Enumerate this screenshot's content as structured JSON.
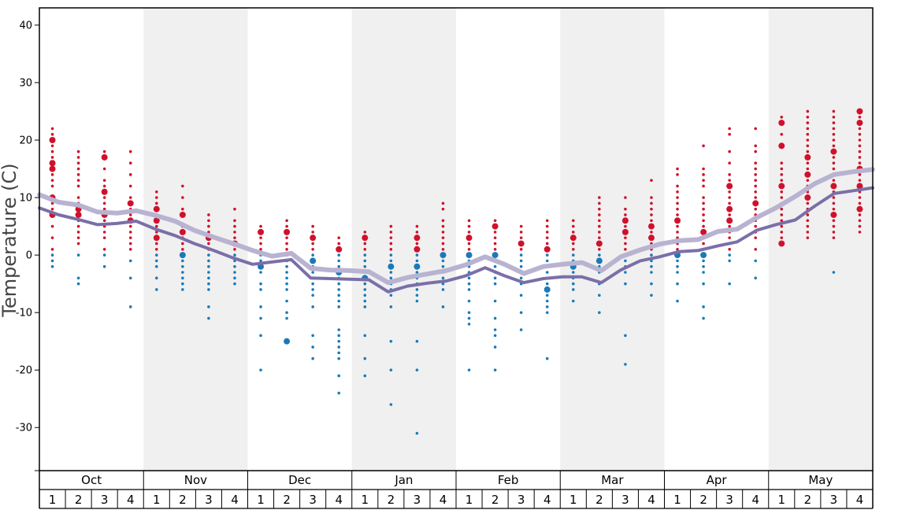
{
  "chart_data": {
    "type": "scatter",
    "ylabel": "Temperature (C)",
    "ylim": [
      -37.5,
      43
    ],
    "yticks": [
      40,
      30,
      20,
      10,
      0,
      -10,
      -20,
      -30
    ],
    "months": [
      "Oct",
      "Nov",
      "Dec",
      "Jan",
      "Feb",
      "Mar",
      "Apr",
      "May"
    ],
    "weeks": [
      "1",
      "2",
      "3",
      "4"
    ],
    "shaded_months": [
      "Nov",
      "Jan",
      "Mar",
      "May"
    ],
    "colors": {
      "warm_dots": "#d0112b",
      "cold_dots": "#1a7ab8",
      "shade": "#f0f0f0",
      "avg_high_line": "#b8b3d1",
      "avg_low_line": "#7b6fa8"
    },
    "lines": {
      "avg_high": [
        10.5,
        9.2,
        8.7,
        7.5,
        7.3,
        7.7,
        6.9,
        5.9,
        4.3,
        3.1,
        2.0,
        0.8,
        -0.2,
        0.3,
        -2.3,
        -2.6,
        -2.7,
        -2.9,
        -4.8,
        -3.9,
        -3.3,
        -2.7,
        -1.7,
        -0.3,
        -1.6,
        -3.2,
        -2.0,
        -1.6,
        -1.3,
        -2.7,
        -0.3,
        0.9,
        1.9,
        2.5,
        2.7,
        4.1,
        4.5,
        6.5,
        8.2,
        10.2,
        12.4,
        14.0,
        14.5,
        14.9
      ],
      "avg_low": [
        8.2,
        7.0,
        6.2,
        5.3,
        5.5,
        5.9,
        4.5,
        3.4,
        2.0,
        0.8,
        -0.5,
        -1.6,
        -1.2,
        -0.8,
        -4.0,
        -4.1,
        -4.2,
        -4.3,
        -6.4,
        -5.4,
        -4.9,
        -4.5,
        -3.6,
        -2.2,
        -3.6,
        -4.8,
        -4.1,
        -3.8,
        -3.8,
        -4.8,
        -2.6,
        -1.0,
        -0.3,
        0.6,
        0.8,
        1.6,
        2.3,
        4.3,
        5.3,
        6.1,
        8.5,
        10.7,
        11.2,
        11.7
      ]
    },
    "dots": [
      {
        "w": 0,
        "values": [
          22,
          21,
          20,
          19,
          18,
          17,
          16,
          15,
          14,
          13,
          12,
          10,
          9,
          8,
          7,
          5,
          3,
          1,
          0,
          -1,
          -2
        ],
        "big": [
          20,
          16,
          15,
          10,
          7
        ]
      },
      {
        "w": 1,
        "values": [
          18,
          17,
          16,
          15,
          14,
          13,
          12,
          10,
          9,
          8,
          7,
          6,
          5,
          4,
          3,
          2,
          0,
          -4,
          -5
        ],
        "big": [
          8,
          7
        ]
      },
      {
        "w": 2,
        "values": [
          18,
          17,
          15,
          13,
          12,
          11,
          10,
          9,
          8,
          7,
          6,
          5,
          4,
          3,
          1,
          0,
          -2
        ],
        "big": [
          17,
          11,
          7
        ]
      },
      {
        "w": 3,
        "values": [
          18,
          16,
          14,
          12,
          10,
          9,
          8,
          7,
          6,
          5,
          4,
          3,
          2,
          1,
          -1,
          -4,
          -9
        ],
        "big": [
          9,
          6
        ]
      },
      {
        "w": 4,
        "values": [
          11,
          10,
          9,
          8,
          7,
          6,
          5,
          4,
          3,
          2,
          1,
          0,
          -1,
          -2,
          -4,
          -6
        ],
        "big": [
          8,
          6,
          3
        ]
      },
      {
        "w": 5,
        "values": [
          12,
          10,
          8,
          7,
          5,
          4,
          3,
          2,
          1,
          0,
          -1,
          -2,
          -3,
          -4,
          -5,
          -6
        ],
        "big": [
          7,
          4,
          0
        ]
      },
      {
        "w": 6,
        "values": [
          7,
          6,
          5,
          4,
          3,
          2,
          1,
          0,
          -1,
          -2,
          -3,
          -4,
          -5,
          -6,
          -9,
          -11
        ],
        "big": [
          3
        ]
      },
      {
        "w": 7,
        "values": [
          8,
          6,
          5,
          4,
          3,
          2,
          1,
          0,
          -1,
          -2,
          -3,
          -4,
          -5
        ],
        "big": [
          2
        ]
      },
      {
        "w": 8,
        "values": [
          5,
          4,
          3,
          2,
          1,
          0,
          -1,
          -2,
          -3,
          -5,
          -6,
          -9,
          -11,
          -14,
          -20
        ],
        "big": [
          4,
          -2,
          -8
        ]
      },
      {
        "w": 9,
        "values": [
          6,
          5,
          4,
          3,
          2,
          1,
          0,
          -1,
          -2,
          -3,
          -4,
          -5,
          -6,
          -8,
          -10,
          -11,
          -15
        ],
        "big": [
          4,
          -15
        ]
      },
      {
        "w": 10,
        "values": [
          5,
          4,
          3,
          2,
          1,
          0,
          -1,
          -2,
          -3,
          -4,
          -5,
          -6,
          -7,
          -9,
          -14,
          -16,
          -18
        ],
        "big": [
          3,
          -1
        ]
      },
      {
        "w": 11,
        "values": [
          3,
          2,
          1,
          0,
          -1,
          -2,
          -3,
          -4,
          -5,
          -6,
          -7,
          -8,
          -9,
          -13,
          -14,
          -15,
          -16,
          -17,
          -18,
          -21,
          -24
        ],
        "big": [
          1,
          -3
        ]
      },
      {
        "w": 12,
        "values": [
          4,
          3,
          2,
          1,
          0,
          -1,
          -2,
          -3,
          -4,
          -5,
          -6,
          -7,
          -8,
          -9,
          -14,
          -18,
          -21
        ],
        "big": [
          3,
          -4
        ]
      },
      {
        "w": 13,
        "values": [
          5,
          4,
          3,
          2,
          1,
          0,
          -1,
          -2,
          -3,
          -4,
          -5,
          -6,
          -7,
          -9,
          -15,
          -20,
          -26
        ],
        "big": [
          -2
        ]
      },
      {
        "w": 14,
        "values": [
          5,
          4,
          3,
          2,
          1,
          0,
          -1,
          -2,
          -3,
          -4,
          -5,
          -6,
          -7,
          -8,
          -15,
          -20,
          -31
        ],
        "big": [
          3,
          1,
          -2
        ]
      },
      {
        "w": 15,
        "values": [
          9,
          8,
          6,
          5,
          4,
          3,
          2,
          1,
          0,
          -1,
          -2,
          -3,
          -4,
          -5,
          -6,
          -9
        ],
        "big": [
          0
        ]
      },
      {
        "w": 16,
        "values": [
          6,
          5,
          4,
          3,
          2,
          1,
          0,
          -1,
          -2,
          -3,
          -4,
          -5,
          -6,
          -8,
          -10,
          -11,
          -12,
          -20
        ],
        "big": [
          3,
          0
        ]
      },
      {
        "w": 17,
        "values": [
          6,
          5,
          4,
          3,
          2,
          1,
          0,
          -1,
          -2,
          -3,
          -4,
          -5,
          -8,
          -11,
          -13,
          -14,
          -16,
          -20
        ],
        "big": [
          5,
          0
        ]
      },
      {
        "w": 18,
        "values": [
          5,
          4,
          3,
          2,
          1,
          0,
          -1,
          -2,
          -3,
          -4,
          -5,
          -7,
          -10,
          -13
        ],
        "big": [
          2
        ]
      },
      {
        "w": 19,
        "values": [
          6,
          5,
          4,
          3,
          2,
          1,
          0,
          -1,
          -2,
          -3,
          -4,
          -5,
          -6,
          -7,
          -8,
          -9,
          -10,
          -18
        ],
        "big": [
          1,
          -6
        ]
      },
      {
        "w": 20,
        "values": [
          6,
          5,
          4,
          3,
          2,
          1,
          0,
          -1,
          -2,
          -3,
          -4,
          -5,
          -6,
          -8
        ],
        "big": [
          3,
          -2
        ]
      },
      {
        "w": 21,
        "values": [
          10,
          9,
          8,
          7,
          6,
          5,
          4,
          3,
          2,
          1,
          0,
          -1,
          -2,
          -3,
          -5,
          -7,
          -10
        ],
        "big": [
          2,
          -1
        ]
      },
      {
        "w": 22,
        "values": [
          10,
          8,
          7,
          6,
          5,
          4,
          3,
          2,
          1,
          0,
          -1,
          -2,
          -3,
          -5,
          -14,
          -19
        ],
        "big": [
          6,
          4
        ]
      },
      {
        "w": 23,
        "values": [
          13,
          10,
          9,
          8,
          7,
          6,
          5,
          4,
          3,
          2,
          1,
          0,
          -1,
          -2,
          -3,
          -5,
          -7
        ],
        "big": [
          5,
          3
        ]
      },
      {
        "w": 24,
        "values": [
          15,
          14,
          12,
          11,
          10,
          9,
          8,
          7,
          6,
          5,
          4,
          3,
          2,
          1,
          0,
          -1,
          -2,
          -3,
          -5,
          -8
        ],
        "big": [
          6,
          0
        ]
      },
      {
        "w": 25,
        "values": [
          19,
          15,
          14,
          13,
          12,
          10,
          9,
          8,
          7,
          6,
          5,
          4,
          3,
          2,
          0,
          -1,
          -2,
          -3,
          -5,
          -9,
          -11
        ],
        "big": [
          4,
          0
        ]
      },
      {
        "w": 26,
        "values": [
          22,
          21,
          18,
          16,
          14,
          13,
          12,
          11,
          10,
          9,
          8,
          7,
          6,
          5,
          4,
          3,
          2,
          1,
          0,
          -1,
          -5
        ],
        "big": [
          12,
          8,
          6
        ]
      },
      {
        "w": 27,
        "values": [
          22,
          19,
          18,
          16,
          15,
          14,
          13,
          12,
          11,
          10,
          9,
          8,
          7,
          6,
          5,
          4,
          3,
          1,
          -1,
          -4
        ],
        "big": [
          9
        ]
      },
      {
        "w": 28,
        "values": [
          24,
          23,
          21,
          19,
          16,
          15,
          14,
          13,
          12,
          11,
          10,
          9,
          8,
          7,
          6,
          5,
          4,
          3,
          2
        ],
        "big": [
          23,
          19,
          12,
          2
        ]
      },
      {
        "w": 29,
        "values": [
          25,
          24,
          23,
          22,
          21,
          20,
          19,
          18,
          17,
          16,
          15,
          14,
          13,
          12,
          11,
          10,
          9,
          8,
          7,
          6,
          5,
          4,
          3
        ],
        "big": [
          17,
          14,
          10
        ]
      },
      {
        "w": 30,
        "values": [
          25,
          24,
          23,
          22,
          21,
          20,
          19,
          18,
          17,
          16,
          15,
          14,
          13,
          12,
          11,
          10,
          9,
          8,
          7,
          6,
          5,
          4,
          3,
          -3
        ],
        "big": [
          18,
          12,
          7
        ]
      },
      {
        "w": 31,
        "values": [
          25,
          24,
          23,
          22,
          21,
          20,
          19,
          18,
          17,
          16,
          15,
          14,
          13,
          12,
          11,
          10,
          9,
          8,
          7,
          6,
          5,
          4
        ],
        "big": [
          25,
          23,
          15,
          12,
          8
        ]
      }
    ]
  }
}
